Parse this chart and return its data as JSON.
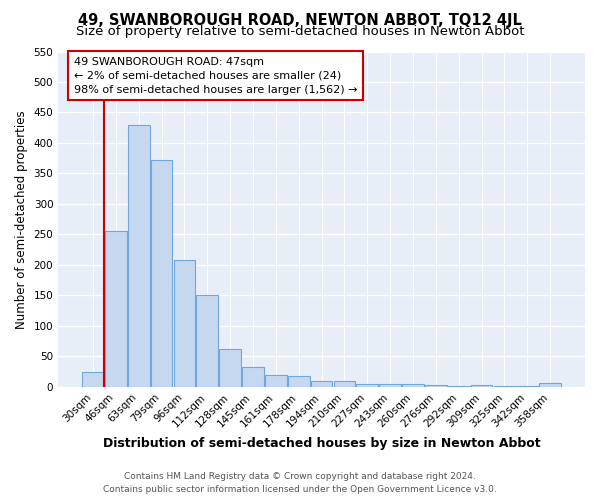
{
  "title": "49, SWANBOROUGH ROAD, NEWTON ABBOT, TQ12 4JL",
  "subtitle": "Size of property relative to semi-detached houses in Newton Abbot",
  "xlabel": "Distribution of semi-detached houses by size in Newton Abbot",
  "ylabel": "Number of semi-detached properties",
  "footer_line1": "Contains HM Land Registry data © Crown copyright and database right 2024.",
  "footer_line2": "Contains public sector information licensed under the Open Government Licence v3.0.",
  "annotation_title": "49 SWANBOROUGH ROAD: 47sqm",
  "annotation_line1": "← 2% of semi-detached houses are smaller (24)",
  "annotation_line2": "98% of semi-detached houses are larger (1,562) →",
  "bar_color": "#c5d8f0",
  "bar_edge_color": "#6fa8d8",
  "vline_color": "#cc0000",
  "annotation_box_edgecolor": "#cc0000",
  "background_color": "#ffffff",
  "plot_bg_color": "#e8eef7",
  "grid_color": "#ffffff",
  "categories": [
    "30sqm",
    "46sqm",
    "63sqm",
    "79sqm",
    "96sqm",
    "112sqm",
    "128sqm",
    "145sqm",
    "161sqm",
    "178sqm",
    "194sqm",
    "210sqm",
    "227sqm",
    "243sqm",
    "260sqm",
    "276sqm",
    "292sqm",
    "309sqm",
    "325sqm",
    "342sqm",
    "358sqm"
  ],
  "values": [
    25,
    255,
    430,
    372,
    208,
    150,
    62,
    33,
    20,
    18,
    10,
    10,
    5,
    5,
    5,
    4,
    1,
    4,
    1,
    1,
    7
  ],
  "ylim": [
    0,
    550
  ],
  "yticks": [
    0,
    50,
    100,
    150,
    200,
    250,
    300,
    350,
    400,
    450,
    500,
    550
  ],
  "vline_bar_index": 1,
  "title_fontsize": 10.5,
  "subtitle_fontsize": 9.5,
  "xlabel_fontsize": 9,
  "ylabel_fontsize": 8.5,
  "tick_fontsize": 7.5,
  "annotation_fontsize": 8,
  "footer_fontsize": 6.5
}
